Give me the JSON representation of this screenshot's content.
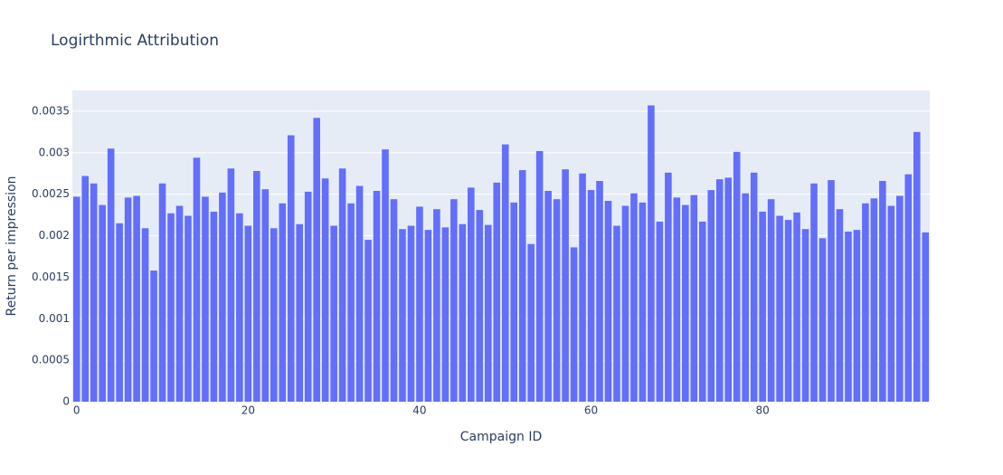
{
  "chart_data": {
    "type": "bar",
    "title": "Logirthmic Attribution",
    "x_label": "Campaign ID",
    "y_label": "Return per impression",
    "x": [
      0,
      1,
      2,
      3,
      4,
      5,
      6,
      7,
      8,
      9,
      10,
      11,
      12,
      13,
      14,
      15,
      16,
      17,
      18,
      19,
      20,
      21,
      22,
      23,
      24,
      25,
      26,
      27,
      28,
      29,
      30,
      31,
      32,
      33,
      34,
      35,
      36,
      37,
      38,
      39,
      40,
      41,
      42,
      43,
      44,
      45,
      46,
      47,
      48,
      49,
      50,
      51,
      52,
      53,
      54,
      55,
      56,
      57,
      58,
      59,
      60,
      61,
      62,
      63,
      64,
      65,
      66,
      67,
      68,
      69,
      70,
      71,
      72,
      73,
      74,
      75,
      76,
      77,
      78,
      79,
      80,
      81,
      82,
      83,
      84,
      85,
      86,
      87,
      88,
      89,
      90,
      91,
      92,
      93,
      94,
      95,
      96,
      97,
      98,
      99
    ],
    "values": [
      0.00247,
      0.00272,
      0.00263,
      0.00237,
      0.00305,
      0.00215,
      0.00246,
      0.00248,
      0.00209,
      0.00158,
      0.00263,
      0.00227,
      0.00236,
      0.00224,
      0.00294,
      0.00247,
      0.00229,
      0.00252,
      0.00281,
      0.00227,
      0.00212,
      0.00278,
      0.00256,
      0.00209,
      0.00239,
      0.00321,
      0.00214,
      0.00253,
      0.00342,
      0.00269,
      0.00212,
      0.00281,
      0.00239,
      0.0026,
      0.00195,
      0.00254,
      0.00304,
      0.00244,
      0.00208,
      0.00212,
      0.00235,
      0.00207,
      0.00232,
      0.0021,
      0.00244,
      0.00214,
      0.00258,
      0.00231,
      0.00213,
      0.00264,
      0.0031,
      0.0024,
      0.00279,
      0.0019,
      0.00302,
      0.00254,
      0.00244,
      0.0028,
      0.00186,
      0.00275,
      0.00255,
      0.00266,
      0.00242,
      0.00212,
      0.00236,
      0.00251,
      0.0024,
      0.00357,
      0.00217,
      0.00276,
      0.00246,
      0.00237,
      0.00249,
      0.00217,
      0.00255,
      0.00268,
      0.0027,
      0.00301,
      0.00251,
      0.00276,
      0.00229,
      0.00244,
      0.00224,
      0.00219,
      0.00228,
      0.00208,
      0.00263,
      0.00197,
      0.00267,
      0.00232,
      0.00205,
      0.00207,
      0.00239,
      0.00245,
      0.00266,
      0.00236,
      0.00248,
      0.00274,
      0.00325,
      0.00204
    ],
    "color": "#636efa",
    "xlim": [
      -0.5,
      99.5
    ],
    "xticks": [
      0,
      20,
      40,
      60,
      80
    ],
    "ylim": [
      0,
      0.00375
    ],
    "yticks": [
      0,
      0.0005,
      0.001,
      0.0015,
      0.002,
      0.0025,
      0.003,
      0.0035
    ],
    "grid": true
  }
}
